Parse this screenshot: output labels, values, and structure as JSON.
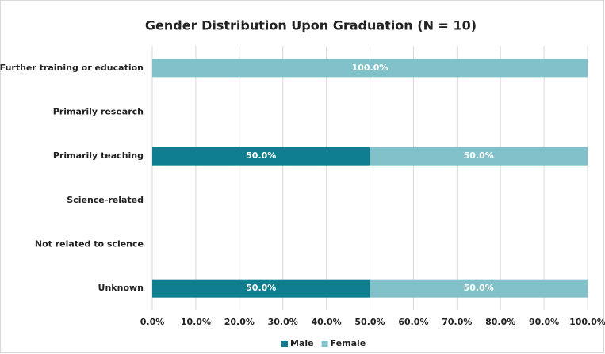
{
  "chart_data": {
    "type": "stacked-barh",
    "title": "Gender Distribution Upon Graduation (N = 10)",
    "categories": [
      "Further training or education",
      "Primarily research",
      "Primarily teaching",
      "Science-related",
      "Not related to science",
      "Unknown"
    ],
    "series": [
      {
        "name": "Male",
        "color": "#0e7f8e",
        "values": [
          null,
          null,
          50,
          null,
          null,
          50
        ],
        "value_labels": [
          null,
          null,
          "50.0%",
          null,
          null,
          "50.0%"
        ]
      },
      {
        "name": "Female",
        "color": "#80c1ca",
        "values": [
          100,
          null,
          50,
          null,
          null,
          50
        ],
        "value_labels": [
          "100.0%",
          null,
          "50.0%",
          null,
          null,
          "50.0%"
        ]
      }
    ],
    "xlim": [
      0,
      100
    ],
    "xticks": [
      {
        "value": 0,
        "label": "0.0%"
      },
      {
        "value": 10,
        "label": "10.0%"
      },
      {
        "value": 20,
        "label": "20.0%"
      },
      {
        "value": 30,
        "label": "30.0%"
      },
      {
        "value": 40,
        "label": "40.0%"
      },
      {
        "value": 50,
        "label": "50.0%"
      },
      {
        "value": 60,
        "label": "60.0%"
      },
      {
        "value": 70,
        "label": "70.0%"
      },
      {
        "value": 80,
        "label": "80.0%"
      },
      {
        "value": 90,
        "label": "90.0%"
      },
      {
        "value": 100,
        "label": "100.0%"
      }
    ],
    "grid": true,
    "legend": "bottom"
  }
}
